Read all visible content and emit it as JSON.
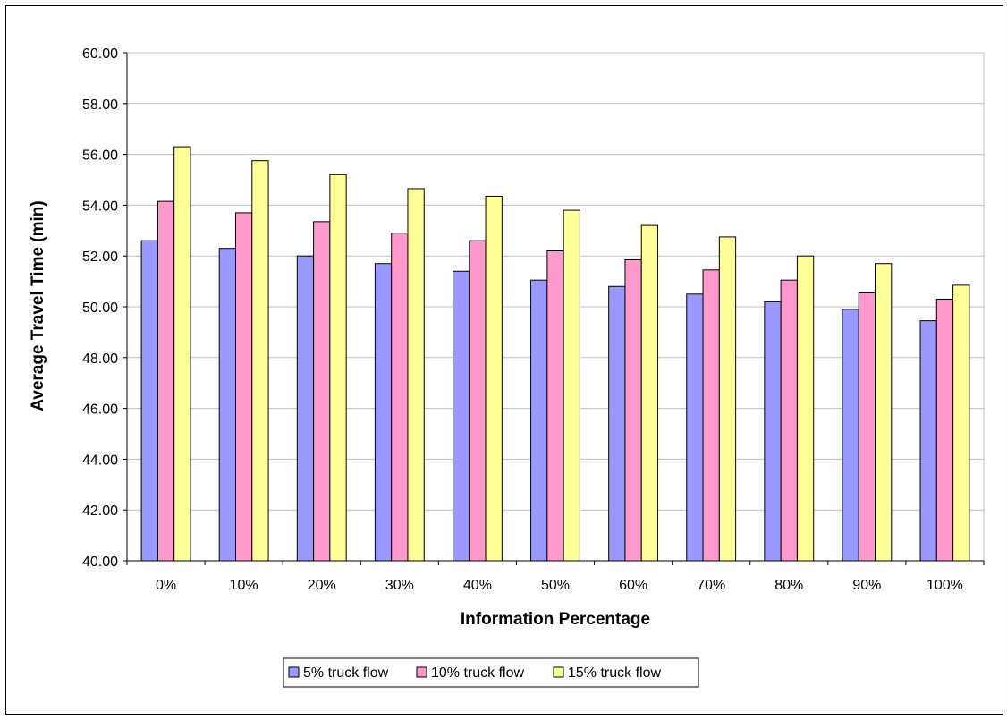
{
  "chart_data": {
    "type": "bar",
    "title": "",
    "xlabel": "Information Percentage",
    "ylabel": "Average Travel Time (min)",
    "ylim": [
      40,
      60
    ],
    "ytick_step": 2,
    "ytick_labels": [
      "40.00",
      "42.00",
      "44.00",
      "46.00",
      "48.00",
      "50.00",
      "52.00",
      "54.00",
      "56.00",
      "58.00",
      "60.00"
    ],
    "grid": true,
    "legend_position": "bottom",
    "categories": [
      "0%",
      "10%",
      "20%",
      "30%",
      "40%",
      "50%",
      "60%",
      "70%",
      "80%",
      "90%",
      "100%"
    ],
    "series": [
      {
        "name": "5% truck flow",
        "color": "#9999ff",
        "values": [
          52.6,
          52.3,
          52.0,
          51.7,
          51.4,
          51.05,
          50.8,
          50.5,
          50.2,
          49.9,
          49.45
        ]
      },
      {
        "name": "10% truck flow",
        "color": "#ff99cc",
        "values": [
          54.15,
          53.7,
          53.35,
          52.9,
          52.6,
          52.2,
          51.85,
          51.45,
          51.05,
          50.55,
          50.3
        ]
      },
      {
        "name": "15% truck flow",
        "color": "#ffff99",
        "values": [
          56.3,
          55.75,
          55.2,
          54.65,
          54.35,
          53.8,
          53.2,
          52.75,
          52.0,
          51.7,
          50.85
        ]
      }
    ]
  }
}
